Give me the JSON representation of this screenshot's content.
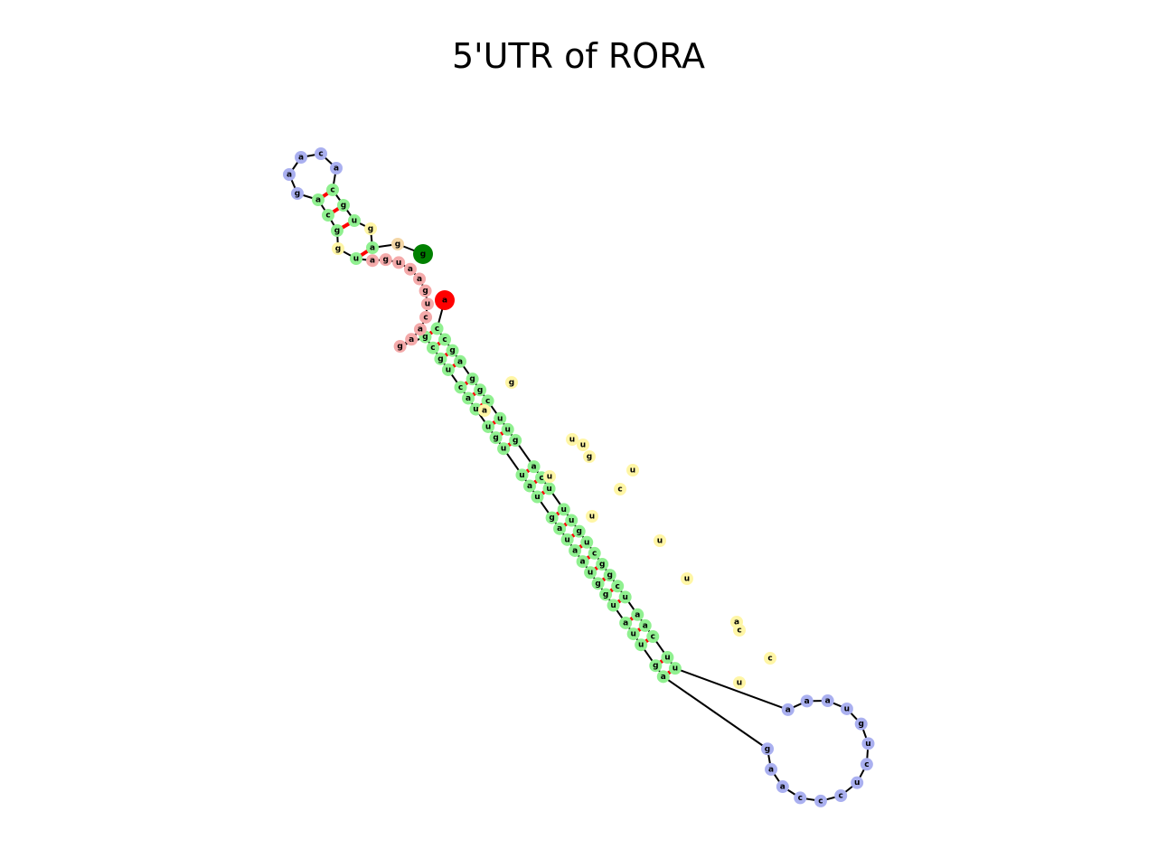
{
  "title": "5'UTR of RORA",
  "colors": {
    "stem": "#90f090",
    "hairpin_loop": "#aab0f0",
    "interior_loop": "#fff6a6",
    "multiloop": "#f4aaaa",
    "dangling_end": "#f4d6a6",
    "five_prime": "#ff0000",
    "three_prime": "#008000",
    "backbone": "#000000",
    "pair": "#ff0000"
  },
  "structure": {
    "five_prime_nt": "a",
    "three_prime_nt": "g",
    "multiloop_nts": [
      "a",
      "g",
      "u",
      "a",
      "a",
      "g",
      "u",
      "c",
      "a",
      "a",
      "g"
    ],
    "dangling_end_nts": [
      "g"
    ],
    "small_hairpin": {
      "stem_5p": [
        "g",
        "c",
        "a"
      ],
      "stem_3p": [
        "u",
        "g",
        "c"
      ],
      "loop": [
        "g",
        "a",
        "a",
        "c",
        "a"
      ],
      "interior_5p": [
        "g"
      ],
      "interior_3p": [
        "g"
      ],
      "closing_5p": "u",
      "closing_3p": "a"
    },
    "long_hairpin": {
      "stem_5p": [
        "g",
        "c",
        "g",
        "u",
        "c",
        "a",
        "u",
        "u",
        "g",
        "u",
        "u",
        "a",
        "u",
        "g",
        "a",
        "u",
        "a",
        "a",
        "u",
        "g",
        "g",
        "u",
        "a",
        "u",
        "u",
        "g",
        "a"
      ],
      "stem_3p": [
        "c",
        "c",
        "g",
        "a",
        "g",
        "g",
        "c",
        "u",
        "u",
        "g",
        "a",
        "c",
        "u",
        "u",
        "u",
        "g",
        "u",
        "c",
        "g",
        "g",
        "c",
        "u",
        "a",
        "a",
        "c",
        "u",
        "u"
      ],
      "loop": [
        "g",
        "a",
        "a",
        "c",
        "c",
        "c",
        "u",
        "c",
        "u",
        "g",
        "u",
        "a",
        "a",
        "a"
      ],
      "interior_nts": [
        "g",
        "a",
        "u",
        "u",
        "g",
        "u",
        "c",
        "u",
        "u",
        "a",
        "c",
        "c",
        "u",
        "u",
        "u"
      ]
    }
  }
}
